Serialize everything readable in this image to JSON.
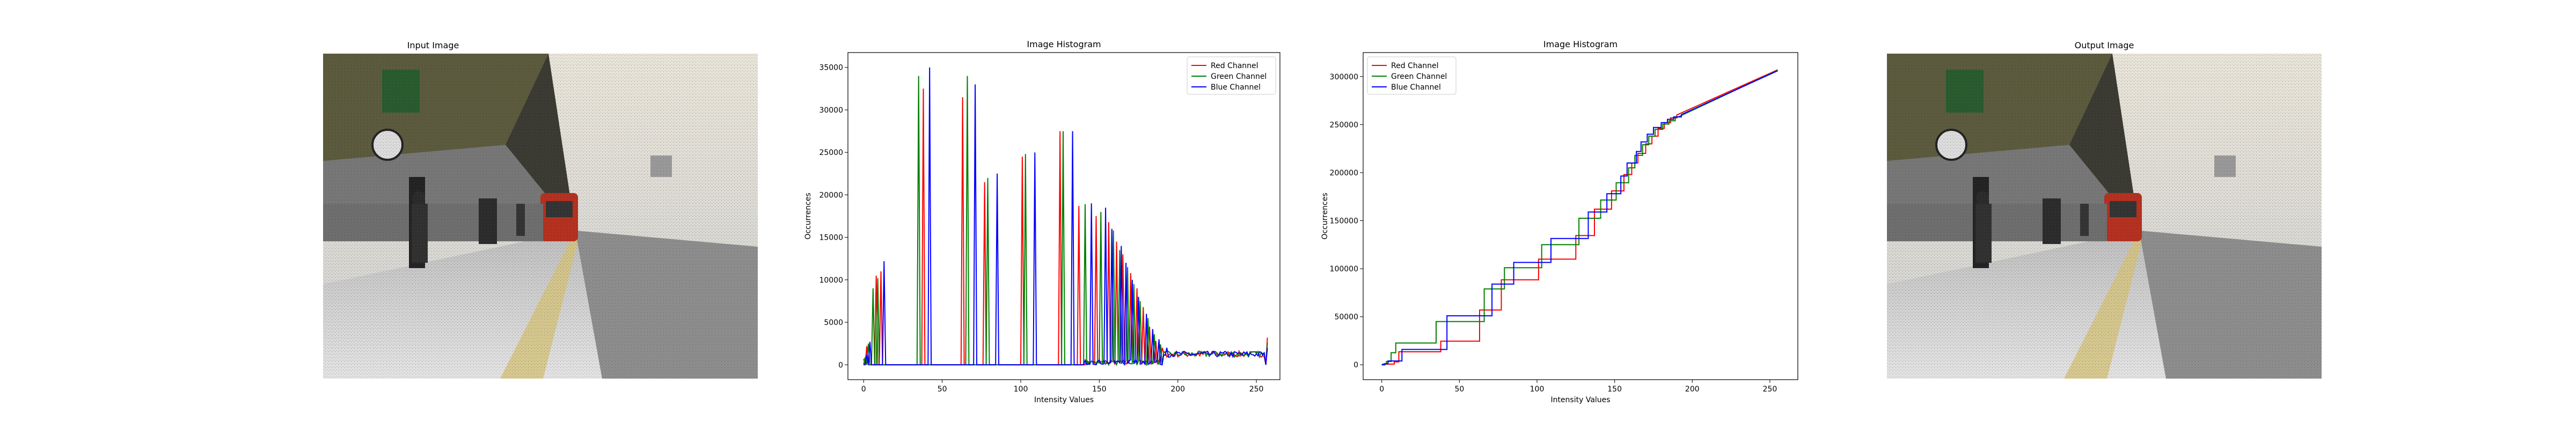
{
  "panels": {
    "input_title": "Input Image",
    "output_title": "Output Image"
  },
  "chart_data": [
    {
      "type": "line",
      "title": "Image Histogram",
      "xlabel": "Intensity Values",
      "ylabel": "Occurrences",
      "xlim": [
        -10,
        265
      ],
      "ylim": [
        -1750,
        36750
      ],
      "xticks": [
        0,
        50,
        100,
        150,
        200,
        250
      ],
      "yticks": [
        0,
        5000,
        10000,
        15000,
        20000,
        25000,
        30000,
        35000
      ],
      "grid": false,
      "legend": "top-right",
      "series": [
        {
          "name": "Red Channel",
          "color": "#ff0000",
          "peaks": [
            [
              0,
              700
            ],
            [
              2,
              2200
            ],
            [
              8,
              10500
            ],
            [
              11,
              11000
            ],
            [
              38,
              32500
            ],
            [
              63,
              31500
            ],
            [
              77,
              21500
            ],
            [
              101,
              24500
            ],
            [
              125,
              27500
            ],
            [
              137,
              18700
            ],
            [
              148,
              17500
            ],
            [
              156,
              16800
            ],
            [
              161,
              14500
            ],
            [
              165,
              13000
            ],
            [
              170,
              10800
            ],
            [
              174,
              9000
            ],
            [
              178,
              6800
            ],
            [
              182,
              4500
            ],
            [
              186,
              2800
            ],
            [
              190,
              2000
            ]
          ]
        },
        {
          "name": "Green Channel",
          "color": "#008000",
          "peaks": [
            [
              1,
              900
            ],
            [
              3,
              2500
            ],
            [
              6,
              9000
            ],
            [
              9,
              10200
            ],
            [
              35,
              34000
            ],
            [
              66,
              34000
            ],
            [
              79,
              22000
            ],
            [
              103,
              24800
            ],
            [
              127,
              27500
            ],
            [
              141,
              18900
            ],
            [
              151,
              18000
            ],
            [
              159,
              15800
            ],
            [
              163,
              13500
            ],
            [
              168,
              11500
            ],
            [
              172,
              9500
            ],
            [
              176,
              7500
            ],
            [
              181,
              5500
            ],
            [
              185,
              3600
            ],
            [
              189,
              2400
            ]
          ]
        },
        {
          "name": "Blue Channel",
          "color": "#0000ff",
          "peaks": [
            [
              2,
              1200
            ],
            [
              4,
              2700
            ],
            [
              13,
              12200
            ],
            [
              42,
              35000
            ],
            [
              71,
              33000
            ],
            [
              85,
              22500
            ],
            [
              109,
              25000
            ],
            [
              133,
              27500
            ],
            [
              145,
              19000
            ],
            [
              154,
              18500
            ],
            [
              158,
              16000
            ],
            [
              164,
              14000
            ],
            [
              167,
              12000
            ],
            [
              171,
              10000
            ],
            [
              175,
              8000
            ],
            [
              180,
              6000
            ],
            [
              184,
              4200
            ],
            [
              188,
              3000
            ],
            [
              193,
              2000
            ]
          ]
        }
      ]
    },
    {
      "type": "line",
      "title": "Image Histogram",
      "xlabel": "Intensity Values",
      "ylabel": "Occurrences",
      "xlim": [
        -12,
        268
      ],
      "ylim": [
        -15500,
        325000
      ],
      "xticks": [
        0,
        50,
        100,
        150,
        200,
        250
      ],
      "yticks": [
        0,
        50000,
        100000,
        150000,
        200000,
        250000,
        300000
      ],
      "grid": false,
      "legend": "top-left",
      "series": [
        {
          "name": "Red Channel",
          "color": "#ff0000",
          "steps": [
            [
              0,
              0
            ],
            [
              2,
              700
            ],
            [
              8,
              3000
            ],
            [
              11,
              13500
            ],
            [
              38,
              24500
            ],
            [
              63,
              57000
            ],
            [
              77,
              88500
            ],
            [
              101,
              110000
            ],
            [
              125,
              134500
            ],
            [
              137,
              162000
            ],
            [
              148,
              181000
            ],
            [
              156,
              198000
            ],
            [
              161,
              210000
            ],
            [
              165,
              220000
            ],
            [
              170,
              230000
            ],
            [
              174,
              238000
            ],
            [
              178,
              246000
            ],
            [
              182,
              252000
            ],
            [
              186,
              257000
            ],
            [
              190,
              260000
            ],
            [
              255,
              307000
            ]
          ]
        },
        {
          "name": "Green Channel",
          "color": "#008000",
          "steps": [
            [
              0,
              0
            ],
            [
              1,
              900
            ],
            [
              3,
              3400
            ],
            [
              6,
              12500
            ],
            [
              9,
              22700
            ],
            [
              35,
              45000
            ],
            [
              66,
              79000
            ],
            [
              79,
              101000
            ],
            [
              103,
              125000
            ],
            [
              127,
              152500
            ],
            [
              141,
              171500
            ],
            [
              151,
              189500
            ],
            [
              159,
              205000
            ],
            [
              163,
              218000
            ],
            [
              168,
              229000
            ],
            [
              172,
              238000
            ],
            [
              176,
              245000
            ],
            [
              181,
              250500
            ],
            [
              185,
              254000
            ],
            [
              189,
              256500
            ],
            [
              255,
              306500
            ]
          ]
        },
        {
          "name": "Blue Channel",
          "color": "#0000ff",
          "steps": [
            [
              0,
              0
            ],
            [
              2,
              1200
            ],
            [
              4,
              4000
            ],
            [
              13,
              16000
            ],
            [
              42,
              51000
            ],
            [
              71,
              84000
            ],
            [
              85,
              106500
            ],
            [
              109,
              131500
            ],
            [
              133,
              159000
            ],
            [
              145,
              178000
            ],
            [
              154,
              196500
            ],
            [
              158,
              210000
            ],
            [
              164,
              222000
            ],
            [
              167,
              232000
            ],
            [
              171,
              240000
            ],
            [
              175,
              247000
            ],
            [
              180,
              252000
            ],
            [
              184,
              255500
            ],
            [
              188,
              258000
            ],
            [
              193,
              260500
            ],
            [
              255,
              306000
            ]
          ]
        }
      ]
    }
  ]
}
